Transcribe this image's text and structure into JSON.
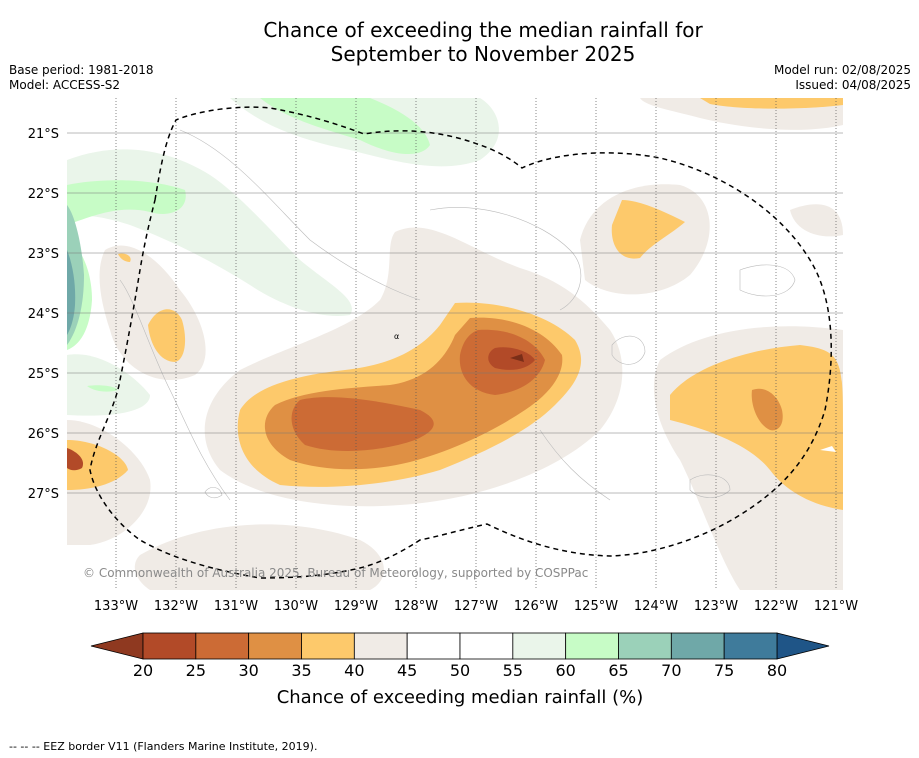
{
  "title_line1": "Chance of exceeding the median rainfall for",
  "title_line2": "September to November 2025",
  "meta_left": {
    "base_period": "Base period: 1981-2018",
    "model": "Model: ACCESS-S2"
  },
  "meta_right": {
    "model_run": "Model run: 02/08/2025",
    "issued": "Issued: 04/08/2025"
  },
  "map": {
    "lat_labels": [
      "21°S",
      "22°S",
      "23°S",
      "24°S",
      "25°S",
      "26°S",
      "27°S"
    ],
    "lon_labels": [
      "133°W",
      "132°W",
      "131°W",
      "130°W",
      "129°W",
      "128°W",
      "127°W",
      "126°W",
      "125°W",
      "124°W",
      "123°W",
      "122°W",
      "121°W"
    ],
    "copyright": "© Commonwealth of Australia 2025, Bureau of Meteorology, supported by COSPPac",
    "colors": {
      "band_25": "#b24a28",
      "band_30": "#cc6b35",
      "band_35": "#df9044",
      "band_40": "#fdc96b",
      "band_45": "#f0ebe6",
      "band_55": "#eaf5ea",
      "band_60": "#c7fcc6",
      "band_65": "#9bd1b9",
      "band_70": "#6fa8a8",
      "band_75": "#3f7b9b",
      "eez_border": "#000000"
    }
  },
  "colorbar": {
    "ticks": [
      "20",
      "25",
      "30",
      "35",
      "40",
      "45",
      "50",
      "55",
      "60",
      "65",
      "70",
      "75",
      "80"
    ],
    "colors": [
      "#b24a28",
      "#cc6b35",
      "#df9044",
      "#fdc96b",
      "#f0ebe6",
      "#ffffff",
      "#ffffff",
      "#eaf5ea",
      "#c7fcc6",
      "#9bd1b9",
      "#6fa8a8",
      "#3f7b9b"
    ],
    "under_color": "#8f3920",
    "over_color": "#1f5587",
    "label": "Chance of exceeding median rainfall (%)"
  },
  "footer": "--  --  -- EEZ border V11 (Flanders Marine Institute, 2019)."
}
